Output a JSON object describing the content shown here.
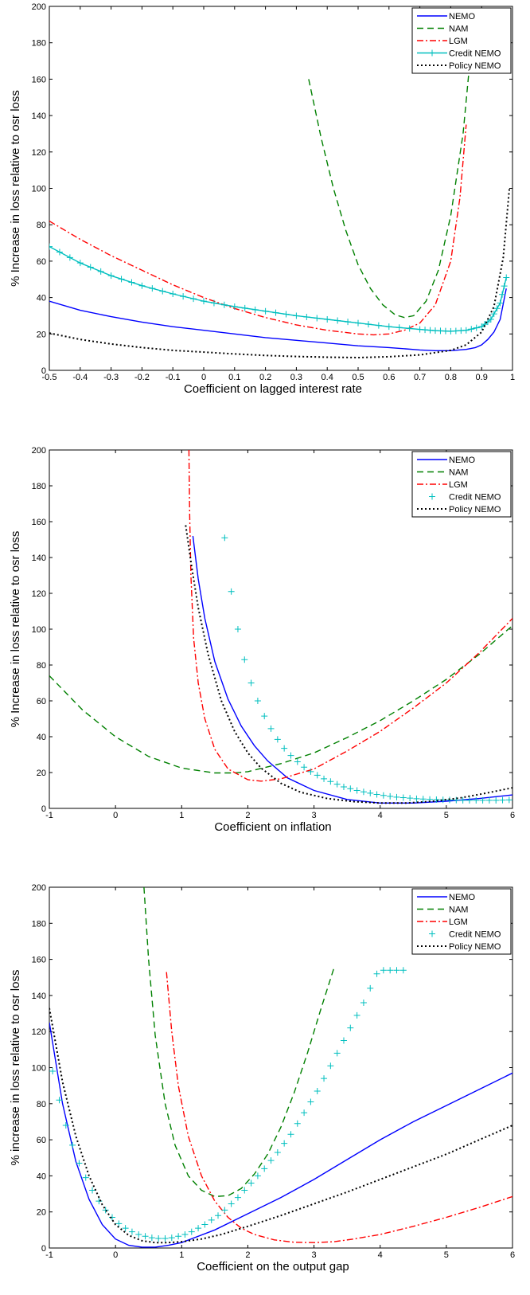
{
  "colors": {
    "NEMO": "#0000ff",
    "NAM": "#008000",
    "LGM": "#ff0000",
    "Credit NEMO": "#00bfbf",
    "Policy NEMO": "#000000"
  },
  "chart_data": [
    {
      "type": "line",
      "xlabel": "Coefficient on lagged interest rate",
      "ylabel": "% Increase in loss relative to osr loss",
      "xlim": [
        -0.5,
        1.0
      ],
      "ylim": [
        0,
        200
      ],
      "xticks": [
        -0.5,
        -0.4,
        -0.3,
        -0.2,
        -0.1,
        0,
        0.1,
        0.2,
        0.3,
        0.4,
        0.5,
        0.6,
        0.7,
        0.8,
        0.9,
        1
      ],
      "xtick_labels": [
        "-0.5",
        "-0.4",
        "-0.3",
        "-0.2",
        "-0.1",
        "0",
        "0.1",
        "0.2",
        "0.3",
        "0.4",
        "0.5",
        "0.6",
        "0.7",
        "0.8",
        "0.9",
        "1"
      ],
      "yticks": [
        0,
        20,
        40,
        60,
        80,
        100,
        120,
        140,
        160,
        180,
        200
      ],
      "ytick_labels": [
        "0",
        "20",
        "40",
        "60",
        "80",
        "100",
        "120",
        "140",
        "160",
        "180",
        "200"
      ],
      "grid": false,
      "legend_position": "top-right",
      "series": [
        {
          "name": "NEMO",
          "style": "solid",
          "x": [
            -0.5,
            -0.4,
            -0.3,
            -0.2,
            -0.1,
            0,
            0.1,
            0.2,
            0.3,
            0.4,
            0.5,
            0.6,
            0.7,
            0.75,
            0.8,
            0.85,
            0.88,
            0.9,
            0.92,
            0.94,
            0.96,
            0.98
          ],
          "y": [
            38,
            33,
            29.5,
            26.5,
            24,
            22,
            20,
            18,
            16.5,
            15,
            13.5,
            12.5,
            11.2,
            10.8,
            10.8,
            11.5,
            12.5,
            14,
            17,
            21,
            28,
            45
          ]
        },
        {
          "name": "NAM",
          "style": "dashed",
          "x": [
            0.34,
            0.38,
            0.42,
            0.46,
            0.5,
            0.54,
            0.58,
            0.62,
            0.65,
            0.68,
            0.72,
            0.76,
            0.8,
            0.84,
            0.865
          ],
          "y": [
            160,
            128,
            100,
            77,
            58,
            45,
            36,
            30.5,
            29,
            30,
            38,
            55,
            85,
            130,
            175
          ]
        },
        {
          "name": "LGM",
          "style": "dashdot",
          "x": [
            -0.5,
            -0.4,
            -0.3,
            -0.2,
            -0.1,
            0,
            0.1,
            0.2,
            0.3,
            0.4,
            0.5,
            0.55,
            0.6,
            0.65,
            0.7,
            0.75,
            0.8,
            0.83,
            0.85
          ],
          "y": [
            82,
            72,
            63,
            55,
            47,
            40,
            34,
            29,
            25,
            22,
            20,
            19.5,
            20,
            22,
            26,
            36,
            60,
            95,
            135
          ]
        },
        {
          "name": "Credit NEMO",
          "style": "solid-plus",
          "x": [
            -0.5,
            -0.4,
            -0.3,
            -0.2,
            -0.1,
            0,
            0.1,
            0.2,
            0.3,
            0.4,
            0.5,
            0.6,
            0.7,
            0.75,
            0.8,
            0.85,
            0.9,
            0.93,
            0.96,
            0.98
          ],
          "y": [
            68,
            59,
            52,
            46.5,
            42,
            38,
            35,
            32.5,
            30,
            28,
            26,
            24,
            22.5,
            21.8,
            21.5,
            22,
            24,
            28,
            37,
            51
          ]
        },
        {
          "name": "Policy NEMO",
          "style": "dotted",
          "x": [
            -0.5,
            -0.4,
            -0.3,
            -0.2,
            -0.1,
            0,
            0.1,
            0.2,
            0.3,
            0.4,
            0.5,
            0.6,
            0.7,
            0.8,
            0.85,
            0.9,
            0.94,
            0.97,
            0.99
          ],
          "y": [
            20.5,
            17,
            14.5,
            12.5,
            11,
            10,
            9,
            8.2,
            7.6,
            7.2,
            7,
            7.5,
            8.5,
            11,
            14,
            21,
            35,
            62,
            100
          ]
        }
      ]
    },
    {
      "type": "line",
      "xlabel": "Coefficient on inflation",
      "ylabel": "% Increase in loss relative to osr loss",
      "xlim": [
        -1,
        6
      ],
      "ylim": [
        0,
        200
      ],
      "xticks": [
        -1,
        0,
        1,
        2,
        3,
        4,
        5,
        6
      ],
      "xtick_labels": [
        "-1",
        "0",
        "1",
        "2",
        "3",
        "4",
        "5",
        "6"
      ],
      "yticks": [
        0,
        20,
        40,
        60,
        80,
        100,
        120,
        140,
        160,
        180,
        200
      ],
      "ytick_labels": [
        "0",
        "20",
        "40",
        "60",
        "80",
        "100",
        "120",
        "140",
        "160",
        "180",
        "200"
      ],
      "grid": false,
      "legend_position": "top-right",
      "series": [
        {
          "name": "NEMO",
          "style": "solid",
          "x": [
            1.17,
            1.25,
            1.35,
            1.5,
            1.7,
            1.9,
            2.1,
            2.3,
            2.6,
            3.0,
            3.5,
            4.0,
            4.5,
            5.0,
            5.5,
            6.0
          ],
          "y": [
            152,
            128,
            106,
            82,
            61,
            46,
            35,
            26.5,
            17,
            10,
            5,
            3,
            3,
            4,
            5.5,
            7.5
          ]
        },
        {
          "name": "NAM",
          "style": "dashed",
          "x": [
            -1,
            -0.5,
            0,
            0.5,
            1.0,
            1.5,
            1.8,
            2.0,
            2.5,
            3.0,
            3.5,
            4.0,
            4.5,
            5.0,
            5.5,
            6.0
          ],
          "y": [
            74,
            55,
            40,
            29,
            22.5,
            19.8,
            19.8,
            20.5,
            25,
            31,
            39.5,
            49,
            60,
            72,
            86,
            102
          ]
        },
        {
          "name": "LGM",
          "style": "dashdot",
          "x": [
            1.11,
            1.12,
            1.14,
            1.18,
            1.25,
            1.35,
            1.5,
            1.7,
            2.0,
            2.2,
            2.5,
            3.0,
            3.5,
            4.0,
            4.5,
            5.0,
            5.5,
            6.0
          ],
          "y": [
            200,
            165,
            130,
            95,
            70,
            50,
            33,
            22,
            16,
            15.2,
            16.5,
            22,
            32,
            43,
            56,
            70,
            87,
            106
          ]
        },
        {
          "name": "Credit NEMO",
          "style": "plus",
          "x": [
            1.65,
            1.75,
            1.85,
            1.95,
            2.05,
            2.15,
            2.25,
            2.35,
            2.45,
            2.55,
            2.65,
            2.75,
            2.85,
            2.95,
            3.05,
            3.15,
            3.25,
            3.35,
            3.45,
            3.55,
            3.65,
            3.75,
            3.85,
            3.95,
            4.05,
            4.15,
            4.25,
            4.35,
            4.45,
            4.55,
            4.65,
            4.75,
            4.85,
            4.95,
            5.05,
            5.15,
            5.25,
            5.35,
            5.45,
            5.55,
            5.65,
            5.75,
            5.85,
            5.95
          ],
          "y": [
            151,
            121,
            100,
            83,
            70,
            60,
            51.5,
            44.5,
            38.5,
            33.5,
            29.5,
            26,
            23,
            20.5,
            18.5,
            16.5,
            15,
            13.5,
            12,
            11,
            10,
            9.2,
            8.5,
            7.8,
            7.2,
            6.7,
            6.3,
            6,
            5.7,
            5.4,
            5.2,
            5,
            4.9,
            4.8,
            4.7,
            4.6,
            4.5,
            4.5,
            4.5,
            4.5,
            4.5,
            4.5,
            4.6,
            4.7
          ]
        },
        {
          "name": "Policy NEMO",
          "style": "dotted",
          "x": [
            1.06,
            1.15,
            1.25,
            1.4,
            1.6,
            1.8,
            2.0,
            2.2,
            2.5,
            2.8,
            3.2,
            3.6,
            4.0,
            4.4,
            4.8,
            5.2,
            5.6,
            6.0
          ],
          "y": [
            158,
            135,
            112,
            86,
            60,
            43,
            31,
            22.5,
            14,
            9,
            5.5,
            3.8,
            3,
            3,
            4,
            5.8,
            8.5,
            11.5
          ]
        }
      ]
    },
    {
      "type": "line",
      "xlabel": "Coefficient on the output gap",
      "ylabel": "% increase in loss relative to osr loss",
      "xlim": [
        -1,
        6
      ],
      "ylim": [
        0,
        200
      ],
      "xticks": [
        -1,
        0,
        1,
        2,
        3,
        4,
        5,
        6
      ],
      "xtick_labels": [
        "-1",
        "0",
        "1",
        "2",
        "3",
        "4",
        "5",
        "6"
      ],
      "yticks": [
        0,
        20,
        40,
        60,
        80,
        100,
        120,
        140,
        160,
        180,
        200
      ],
      "ytick_labels": [
        "0",
        "20",
        "40",
        "60",
        "80",
        "100",
        "120",
        "140",
        "160",
        "180",
        "200"
      ],
      "grid": false,
      "legend_position": "top-right",
      "series": [
        {
          "name": "NEMO",
          "style": "solid",
          "x": [
            -1,
            -0.8,
            -0.6,
            -0.4,
            -0.2,
            0,
            0.2,
            0.4,
            0.6,
            0.8,
            1.0,
            1.5,
            2.0,
            2.5,
            3.0,
            3.5,
            4.0,
            4.5,
            5.0,
            5.5,
            6.0
          ],
          "y": [
            125,
            80,
            48,
            27,
            13,
            5,
            1.5,
            0.5,
            0.5,
            1.5,
            3,
            10,
            19,
            28,
            38,
            49,
            60,
            70,
            79,
            88,
            97
          ]
        },
        {
          "name": "NAM",
          "style": "dashed",
          "x": [
            0.43,
            0.5,
            0.6,
            0.75,
            0.9,
            1.1,
            1.3,
            1.5,
            1.7,
            1.9,
            2.1,
            2.3,
            2.5,
            2.7,
            2.9,
            3.1,
            3.3
          ],
          "y": [
            200,
            160,
            118,
            80,
            57,
            40,
            32,
            28.5,
            29,
            33,
            41,
            52,
            67,
            86,
            108,
            132,
            155
          ]
        },
        {
          "name": "LGM",
          "style": "dashdot",
          "x": [
            0.77,
            0.85,
            0.95,
            1.1,
            1.3,
            1.5,
            1.7,
            1.9,
            2.1,
            2.4,
            2.7,
            3.0,
            3.3,
            3.6,
            4.0,
            4.5,
            5.0,
            5.5,
            6.0
          ],
          "y": [
            153,
            120,
            90,
            62,
            40,
            26,
            17,
            11,
            7.5,
            4.5,
            3.2,
            3,
            3.5,
            5,
            7.5,
            12,
            17,
            22.5,
            28.5
          ]
        },
        {
          "name": "Credit NEMO",
          "style": "plus",
          "x": [
            -0.95,
            -0.85,
            -0.75,
            -0.65,
            -0.55,
            -0.45,
            -0.35,
            -0.25,
            -0.15,
            -0.05,
            0.05,
            0.15,
            0.25,
            0.35,
            0.45,
            0.55,
            0.65,
            0.75,
            0.85,
            0.95,
            1.05,
            1.15,
            1.25,
            1.35,
            1.45,
            1.55,
            1.65,
            1.75,
            1.85,
            1.95,
            2.05,
            2.15,
            2.25,
            2.35,
            2.45,
            2.55,
            2.65,
            2.75,
            2.85,
            2.95,
            3.05,
            3.15,
            3.25,
            3.35,
            3.45,
            3.55,
            3.65,
            3.75,
            3.85,
            3.95,
            4.05,
            4.15,
            4.25,
            4.35
          ],
          "y": [
            98,
            82,
            68,
            57,
            47,
            39,
            32,
            26,
            21,
            17,
            13.5,
            11,
            9,
            7.5,
            6.5,
            5.7,
            5.3,
            5.3,
            5.7,
            6.5,
            7.5,
            9,
            11,
            13,
            15.5,
            18,
            21,
            24.5,
            28,
            32,
            36,
            40,
            44,
            48.5,
            53,
            58,
            63,
            69,
            75,
            81,
            87,
            94,
            101,
            108,
            115,
            122,
            129,
            136,
            144,
            152,
            154,
            154,
            154,
            154
          ]
        },
        {
          "name": "Policy NEMO",
          "style": "dotted",
          "x": [
            -1,
            -0.8,
            -0.6,
            -0.4,
            -0.2,
            0,
            0.2,
            0.4,
            0.6,
            0.8,
            1.0,
            1.3,
            1.6,
            2.0,
            2.5,
            3.0,
            3.5,
            4.0,
            4.5,
            5.0,
            5.5,
            6.0
          ],
          "y": [
            133,
            92,
            62,
            40,
            24,
            13,
            7,
            4,
            3,
            3,
            3.5,
            5,
            7.5,
            12,
            18,
            24.5,
            31,
            38,
            45,
            52,
            60,
            68
          ]
        }
      ]
    }
  ]
}
